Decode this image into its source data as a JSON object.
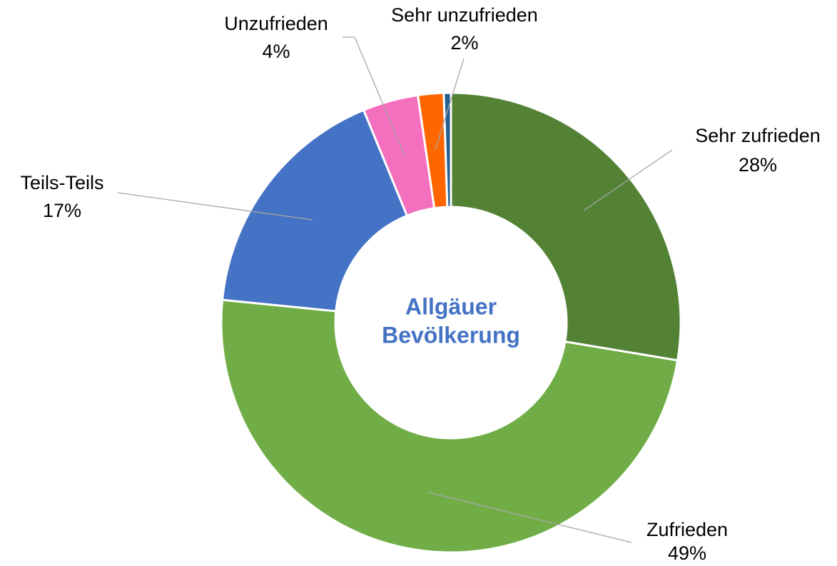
{
  "chart_data": {
    "type": "donut",
    "center_label": [
      "Allgäuer",
      "Bevölkerung"
    ],
    "categories": [
      "Sehr zufrieden",
      "Zufrieden",
      "Teils-Teils",
      "Unzufrieden",
      "Sehr unzufrieden",
      null
    ],
    "values": [
      27.6,
      48.9,
      17.2,
      3.9,
      1.8,
      0.5
    ],
    "value_labels": [
      "28%",
      "49%",
      "17%",
      "4%",
      "2%",
      null
    ],
    "colors": [
      "#548235",
      "#70ad47",
      "#4472c4",
      "#f46fbd",
      "#ff6600",
      "#255e91"
    ]
  }
}
